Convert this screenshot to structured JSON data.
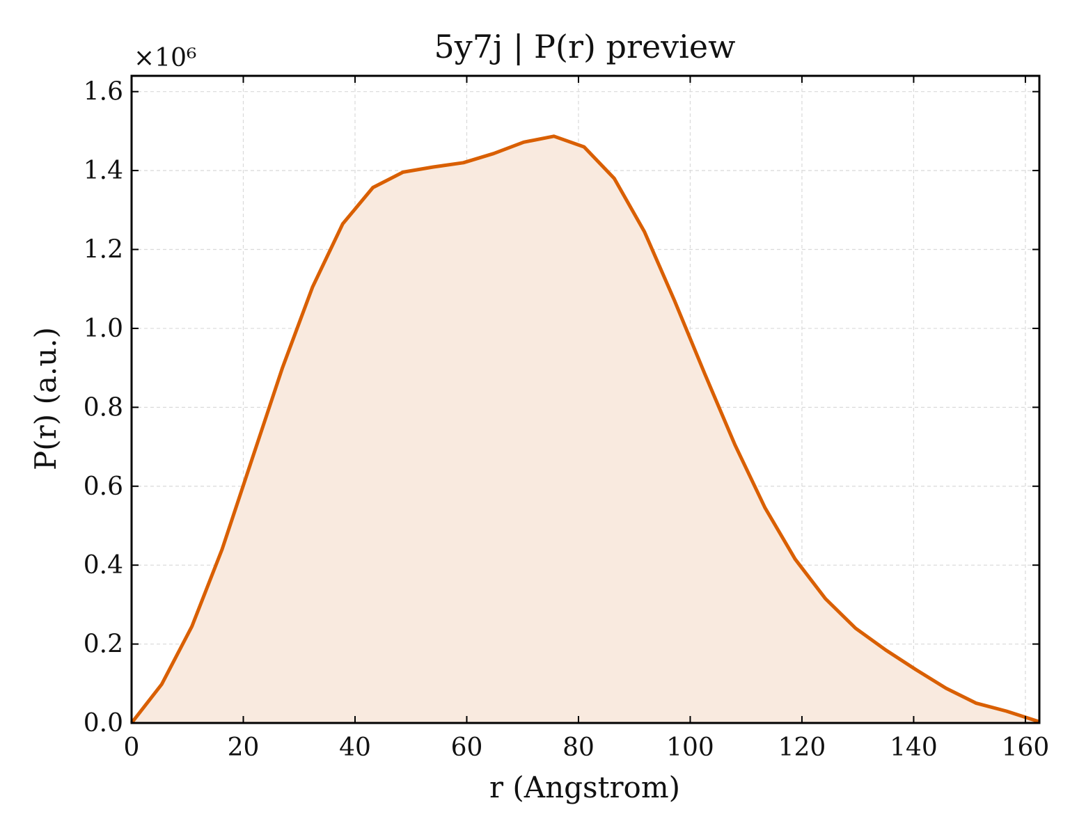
{
  "chart_data": {
    "type": "area",
    "title": "5y7j | P(r) preview",
    "xlabel": "r (Angstrom)",
    "ylabel": "P(r) (a.u.)",
    "y_multiplier_label": "×10⁶",
    "y_scale": 1000000,
    "xlim": [
      0,
      162.5
    ],
    "ylim": [
      0,
      1.64
    ],
    "xticks": [
      0,
      20,
      40,
      60,
      80,
      100,
      120,
      140,
      160
    ],
    "xtick_labels": [
      "0",
      "20",
      "40",
      "60",
      "80",
      "100",
      "120",
      "140",
      "160"
    ],
    "yticks": [
      0,
      0.2,
      0.4,
      0.6,
      0.8,
      1.0,
      1.2,
      1.4,
      1.6
    ],
    "ytick_labels": [
      "0.0",
      "0.2",
      "0.4",
      "0.6",
      "0.8",
      "1.0",
      "1.2",
      "1.4",
      "1.6"
    ],
    "grid": true,
    "series": [
      {
        "x": [
          0,
          5.4,
          10.8,
          16.2,
          21.6,
          27.0,
          32.4,
          37.8,
          43.2,
          48.6,
          54.0,
          59.4,
          64.8,
          70.2,
          75.6,
          81.0,
          86.4,
          91.8,
          97.2,
          102.6,
          108.0,
          113.4,
          118.8,
          124.2,
          129.6,
          135.0,
          140.4,
          145.8,
          151.2,
          156.6,
          162.5
        ],
        "y": [
          0.0,
          0.098,
          0.245,
          0.44,
          0.67,
          0.9,
          1.105,
          1.265,
          1.357,
          1.396,
          1.409,
          1.42,
          1.443,
          1.472,
          1.487,
          1.46,
          1.38,
          1.245,
          1.07,
          0.885,
          0.705,
          0.545,
          0.415,
          0.315,
          0.24,
          0.185,
          0.135,
          0.088,
          0.05,
          0.03,
          0.003
        ]
      }
    ],
    "colors": {
      "line": "#d95f02",
      "fill": "#f9eadf",
      "grid": "#d9d9d9",
      "axis": "#000000"
    }
  }
}
